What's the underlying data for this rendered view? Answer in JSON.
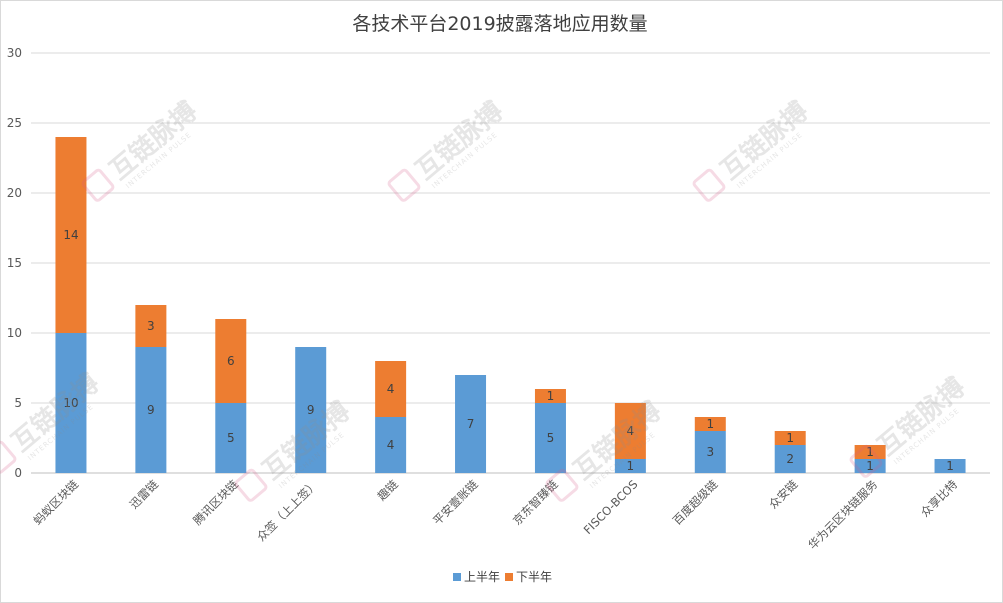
{
  "chart_data": {
    "type": "bar",
    "stacked": true,
    "title": "各技术平台2019披露落地应用数量",
    "xlabel": "",
    "ylabel": "",
    "ylim": [
      0,
      30
    ],
    "yticks": [
      0,
      5,
      10,
      15,
      20,
      25,
      30
    ],
    "grid": true,
    "legend_position": "bottom",
    "categories": [
      "蚂蚁区块链",
      "迅雷链",
      "腾讯区块链",
      "众签（上上签）",
      "趣链",
      "平安壹账链",
      "京东智臻链",
      "FISCO-BCOS",
      "百度超级链",
      "众安链",
      "华为云区块链服务",
      "众享比特"
    ],
    "series": [
      {
        "name": "上半年",
        "color": "#5b9bd5",
        "values": [
          10,
          9,
          5,
          9,
          4,
          7,
          5,
          1,
          3,
          2,
          1,
          1
        ]
      },
      {
        "name": "下半年",
        "color": "#ed7d31",
        "values": [
          14,
          3,
          6,
          0,
          4,
          0,
          1,
          4,
          1,
          1,
          1,
          0
        ]
      }
    ]
  },
  "watermark": {
    "text": "互链脉搏",
    "subtext": "INTERCHAIN PULSE"
  }
}
